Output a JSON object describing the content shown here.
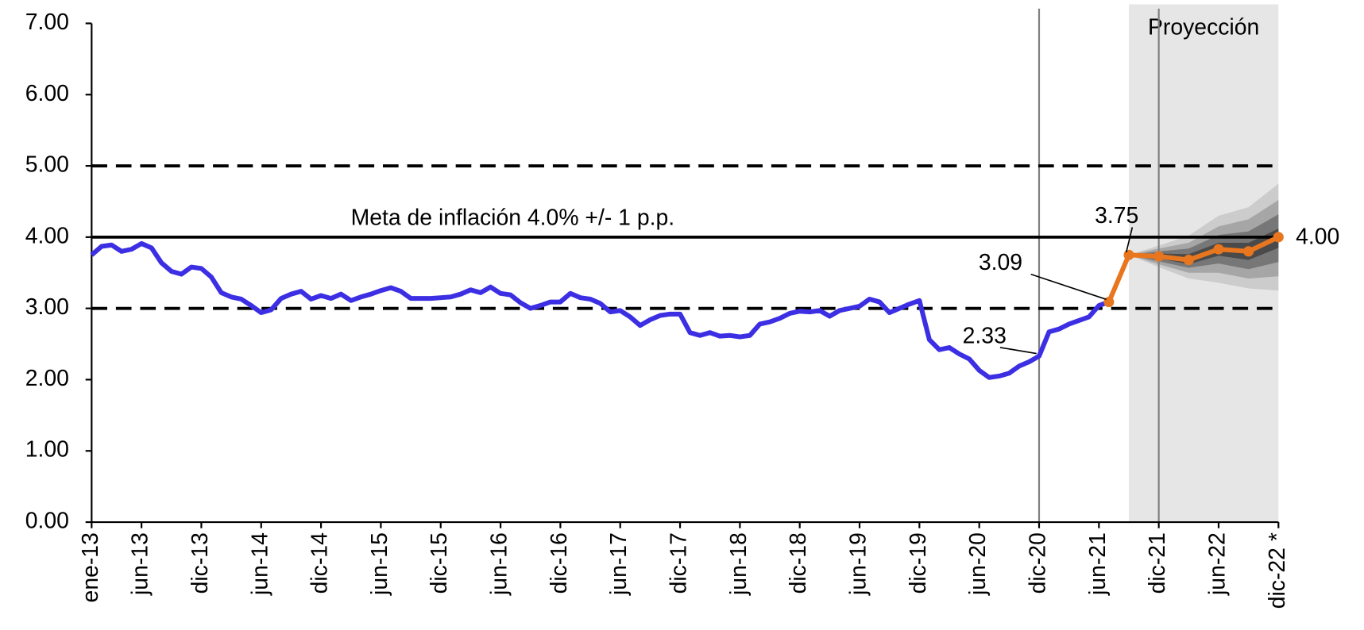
{
  "chart_data": {
    "type": "line",
    "xlim": [
      0,
      119
    ],
    "ylim": [
      0,
      7
    ],
    "yticks": [
      {
        "value": 0,
        "label": "0.00"
      },
      {
        "value": 1,
        "label": "1.00"
      },
      {
        "value": 2,
        "label": "2.00"
      },
      {
        "value": 3,
        "label": "3.00"
      },
      {
        "value": 4,
        "label": "4.00"
      },
      {
        "value": 5,
        "label": "5.00"
      },
      {
        "value": 6,
        "label": "6.00"
      },
      {
        "value": 7,
        "label": "7.00"
      }
    ],
    "xticks": [
      {
        "value": 0,
        "label": "ene-13"
      },
      {
        "value": 5,
        "label": "jun-13"
      },
      {
        "value": 11,
        "label": "dic-13"
      },
      {
        "value": 17,
        "label": "jun-14"
      },
      {
        "value": 23,
        "label": "dic-14"
      },
      {
        "value": 29,
        "label": "jun-15"
      },
      {
        "value": 35,
        "label": "dic-15"
      },
      {
        "value": 41,
        "label": "jun-16"
      },
      {
        "value": 47,
        "label": "dic-16"
      },
      {
        "value": 53,
        "label": "jun-17"
      },
      {
        "value": 59,
        "label": "dic-17"
      },
      {
        "value": 65,
        "label": "jun-18"
      },
      {
        "value": 71,
        "label": "dic-18"
      },
      {
        "value": 77,
        "label": "jun-19"
      },
      {
        "value": 83,
        "label": "dic-19"
      },
      {
        "value": 89,
        "label": "jun-20"
      },
      {
        "value": 95,
        "label": "dic-20"
      },
      {
        "value": 101,
        "label": "jun-21"
      },
      {
        "value": 107,
        "label": "dic-21"
      },
      {
        "value": 113,
        "label": "jun-22"
      },
      {
        "value": 119,
        "label": "dic-22 *"
      }
    ],
    "reference_lines": [
      {
        "y": 5,
        "style": "dashed"
      },
      {
        "y": 4,
        "style": "solid"
      },
      {
        "y": 3,
        "style": "dashed"
      }
    ],
    "annotation": "Meta de inflación 4.0% +/- 1 p.p.",
    "projection": {
      "label": "Proyección",
      "xlim": [
        104,
        119
      ],
      "color": "#e6e6e6"
    },
    "vlines": [
      95,
      107
    ],
    "fan": {
      "x": [
        104,
        107,
        110,
        113,
        116,
        119
      ],
      "bands": [
        {
          "color": "#cccccc",
          "upper": [
            3.75,
            3.88,
            4.02,
            4.3,
            4.42,
            4.75
          ],
          "lower": [
            3.75,
            3.58,
            3.42,
            3.36,
            3.28,
            3.25
          ]
        },
        {
          "color": "#a6a6a6",
          "upper": [
            3.75,
            3.84,
            3.92,
            4.15,
            4.25,
            4.52
          ],
          "lower": [
            3.75,
            3.62,
            3.5,
            3.5,
            3.42,
            3.45
          ]
        },
        {
          "color": "#777777",
          "upper": [
            3.75,
            3.8,
            3.84,
            4.03,
            4.08,
            4.32
          ],
          "lower": [
            3.75,
            3.66,
            3.57,
            3.63,
            3.55,
            3.65
          ]
        },
        {
          "color": "#4a4a4a",
          "upper": [
            3.75,
            3.77,
            3.76,
            3.92,
            3.92,
            4.12
          ],
          "lower": [
            3.75,
            3.7,
            3.62,
            3.74,
            3.68,
            3.85
          ]
        }
      ]
    },
    "series": [
      {
        "color": "#3c2fe3",
        "markers": false,
        "x": [
          0,
          1,
          2,
          3,
          4,
          5,
          6,
          7,
          8,
          9,
          10,
          11,
          12,
          13,
          14,
          15,
          16,
          17,
          18,
          19,
          20,
          21,
          22,
          23,
          24,
          25,
          26,
          27,
          28,
          29,
          30,
          31,
          32,
          33,
          34,
          35,
          36,
          37,
          38,
          39,
          40,
          41,
          42,
          43,
          44,
          45,
          46,
          47,
          48,
          49,
          50,
          51,
          52,
          53,
          54,
          55,
          56,
          57,
          58,
          59,
          60,
          61,
          62,
          63,
          64,
          65,
          66,
          67,
          68,
          69,
          70,
          71,
          72,
          73,
          74,
          75,
          76,
          77,
          78,
          79,
          80,
          81,
          82,
          83,
          84,
          85,
          86,
          87,
          88,
          89,
          90,
          91,
          92,
          93,
          94,
          95,
          96,
          97,
          98,
          99,
          100,
          101,
          102
        ],
        "values": [
          3.75,
          3.87,
          3.89,
          3.8,
          3.83,
          3.91,
          3.85,
          3.64,
          3.52,
          3.48,
          3.58,
          3.56,
          3.44,
          3.22,
          3.16,
          3.13,
          3.04,
          2.94,
          2.98,
          3.14,
          3.2,
          3.24,
          3.13,
          3.18,
          3.14,
          3.2,
          3.11,
          3.16,
          3.2,
          3.25,
          3.29,
          3.24,
          3.14,
          3.14,
          3.14,
          3.15,
          3.16,
          3.2,
          3.26,
          3.22,
          3.3,
          3.21,
          3.19,
          3.08,
          3.0,
          3.04,
          3.09,
          3.09,
          3.21,
          3.15,
          3.13,
          3.07,
          2.95,
          2.97,
          2.88,
          2.76,
          2.84,
          2.9,
          2.92,
          2.92,
          2.66,
          2.62,
          2.66,
          2.61,
          2.62,
          2.6,
          2.62,
          2.78,
          2.81,
          2.86,
          2.93,
          2.96,
          2.95,
          2.97,
          2.89,
          2.97,
          3.0,
          3.03,
          3.13,
          3.09,
          2.94,
          3.0,
          3.06,
          3.11,
          2.56,
          2.42,
          2.45,
          2.36,
          2.29,
          2.13,
          2.03,
          2.05,
          2.09,
          2.19,
          2.25,
          2.33,
          2.67,
          2.71,
          2.78,
          2.83,
          2.88,
          3.04,
          3.09
        ],
        "value_labels": [
          null,
          null,
          null,
          null,
          null,
          null,
          null,
          null,
          null,
          null,
          null,
          null,
          null,
          null,
          null,
          null,
          null,
          null,
          null,
          null,
          null,
          null,
          null,
          null,
          null,
          null,
          null,
          null,
          null,
          null,
          null,
          null,
          null,
          null,
          null,
          null,
          null,
          null,
          null,
          null,
          null,
          null,
          null,
          null,
          null,
          null,
          null,
          null,
          null,
          null,
          null,
          null,
          null,
          null,
          null,
          null,
          null,
          null,
          null,
          null,
          null,
          null,
          null,
          null,
          null,
          null,
          null,
          null,
          null,
          null,
          null,
          null,
          null,
          null,
          null,
          null,
          null,
          null,
          null,
          null,
          null,
          null,
          null,
          null,
          null,
          null,
          null,
          null,
          null,
          null,
          null,
          null,
          null,
          null,
          null,
          "2.33",
          null,
          null,
          null,
          null,
          null,
          null,
          null
        ]
      },
      {
        "color": "#e8761f",
        "markers": true,
        "x": [
          102,
          104,
          107,
          110,
          113,
          116,
          119
        ],
        "values": [
          3.09,
          3.75,
          3.73,
          3.68,
          3.83,
          3.8,
          4.0
        ],
        "value_labels": [
          "3.09",
          "3.75",
          null,
          null,
          null,
          null,
          "4.00"
        ]
      }
    ]
  }
}
